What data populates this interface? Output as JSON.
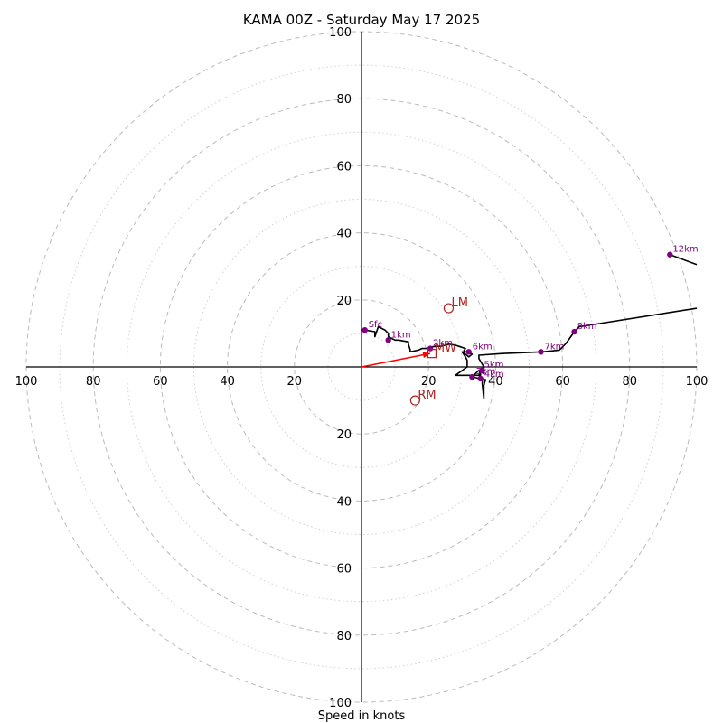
{
  "chart_data": {
    "type": "hodograph",
    "title": "KAMA 00Z - Saturday May 17 2025",
    "xlabel": "Speed in knots",
    "ring_labels": [
      "20",
      "40",
      "60",
      "80",
      "100"
    ],
    "axis_range": [
      -100,
      100
    ],
    "ring_step_major": 20,
    "ring_step_minor": 10,
    "grid": true,
    "colors": {
      "trace": "#000000",
      "height_marker": "#800080",
      "storm_motion": "#b22222",
      "mean_wind_arrow": "#ff0000",
      "grid": "#bbbbbb"
    },
    "trace": [
      [
        1,
        11
      ],
      [
        4,
        10.5
      ],
      [
        4,
        9
      ],
      [
        5,
        12
      ],
      [
        7,
        11
      ],
      [
        8,
        10
      ],
      [
        8,
        9
      ],
      [
        10,
        8
      ],
      [
        11,
        8
      ],
      [
        14,
        7.5
      ],
      [
        14,
        6.8
      ],
      [
        14.5,
        5.2
      ],
      [
        14.5,
        4.5
      ],
      [
        17,
        5
      ],
      [
        18,
        5.5
      ],
      [
        20,
        5.5
      ],
      [
        21,
        6
      ],
      [
        24,
        6.2
      ],
      [
        26,
        6.8
      ],
      [
        28,
        6.5
      ],
      [
        31,
        5.5
      ],
      [
        30.5,
        4.8
      ],
      [
        30.5,
        4.5
      ],
      [
        32,
        4.5
      ],
      [
        33,
        3.8
      ],
      [
        32,
        3
      ],
      [
        31,
        3.8
      ],
      [
        30,
        4.5
      ],
      [
        31,
        3
      ],
      [
        31.5,
        2
      ],
      [
        31.5,
        0
      ],
      [
        28,
        -2.5
      ],
      [
        32,
        -2.5
      ],
      [
        35.5,
        -2.5
      ],
      [
        35.5,
        -1.5
      ],
      [
        35.5,
        -0.5
      ],
      [
        35,
        -2.5
      ],
      [
        36,
        -3.5
      ],
      [
        36,
        -5
      ],
      [
        36.5,
        -9.5
      ],
      [
        36.5,
        -5.5
      ],
      [
        37,
        -3.8
      ],
      [
        33,
        -3
      ],
      [
        35,
        -1
      ],
      [
        36.5,
        -2
      ],
      [
        36.5,
        0
      ],
      [
        35,
        2.5
      ],
      [
        35,
        3.5
      ],
      [
        42,
        4
      ],
      [
        54,
        4.5
      ],
      [
        59,
        5
      ],
      [
        61,
        7
      ],
      [
        63.5,
        10.5
      ],
      [
        65,
        12
      ],
      [
        100,
        17.5
      ]
    ],
    "trace_upper": [
      [
        92,
        33.5
      ],
      [
        100,
        30.5
      ]
    ],
    "height_markers": [
      {
        "label": "Sfc",
        "x": 1,
        "y": 11
      },
      {
        "label": "1km",
        "x": 8,
        "y": 8
      },
      {
        "label": "2km",
        "x": 20.5,
        "y": 5.5
      },
      {
        "label": "6km",
        "x": 32,
        "y": 4.5
      },
      {
        "label": "5km",
        "x": 36,
        "y": -1
      },
      {
        "label": "4km",
        "x": 35.5,
        "y": -3.5
      },
      {
        "label": "3km",
        "x": 33,
        "y": -3
      },
      {
        "label": "7km",
        "x": 53.5,
        "y": 4.5
      },
      {
        "label": "8km",
        "x": 63.5,
        "y": 10.5
      },
      {
        "label": "12km",
        "x": 92,
        "y": 33.5
      }
    ],
    "storm_motions": [
      {
        "label": "LM",
        "x": 26,
        "y": 17.5,
        "marker": "circle"
      },
      {
        "label": "RM",
        "x": 16,
        "y": -10,
        "marker": "circle"
      },
      {
        "label": "MW",
        "x": 21,
        "y": 4,
        "marker": "square"
      }
    ],
    "mean_wind_vector": {
      "x": 20.5,
      "y": 4
    }
  }
}
